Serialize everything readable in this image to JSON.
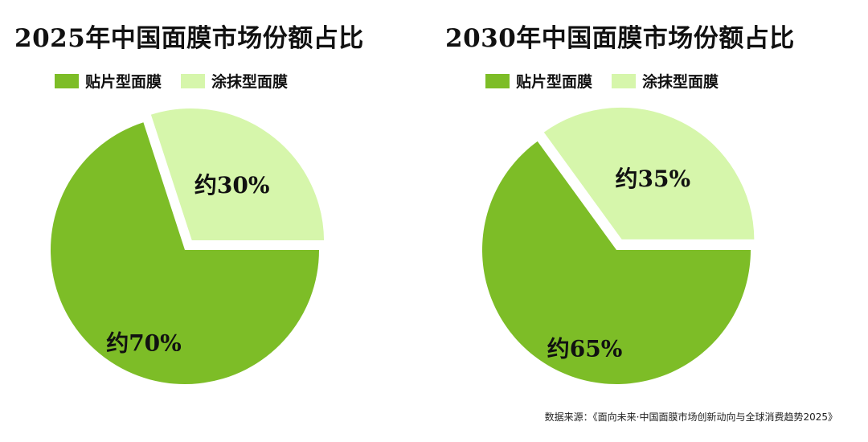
{
  "colors": {
    "sheet": "#7dbd27",
    "smear": "#d6f6ab"
  },
  "legend": {
    "sheet_label": "贴片型面膜",
    "smear_label": "涂抹型面膜"
  },
  "chart_data": [
    {
      "type": "pie",
      "title": "2025年中国面膜市场份额占比",
      "legend_placement": "top",
      "slices": [
        {
          "name": "贴片型面膜",
          "value": 70,
          "label": "约70%",
          "color": "#7dbd27",
          "exploded": false
        },
        {
          "name": "涂抹型面膜",
          "value": 30,
          "label": "约30%",
          "color": "#d6f6ab",
          "exploded": true
        }
      ]
    },
    {
      "type": "pie",
      "title": "2030年中国面膜市场份额占比",
      "legend_placement": "top",
      "slices": [
        {
          "name": "贴片型面膜",
          "value": 65,
          "label": "约65%",
          "color": "#7dbd27",
          "exploded": false
        },
        {
          "name": "涂抹型面膜",
          "value": 35,
          "label": "约35%",
          "color": "#d6f6ab",
          "exploded": true
        }
      ]
    }
  ],
  "source": "数据来源：《面向未来·中国面膜市场创新动向与全球消费趋势2025》"
}
